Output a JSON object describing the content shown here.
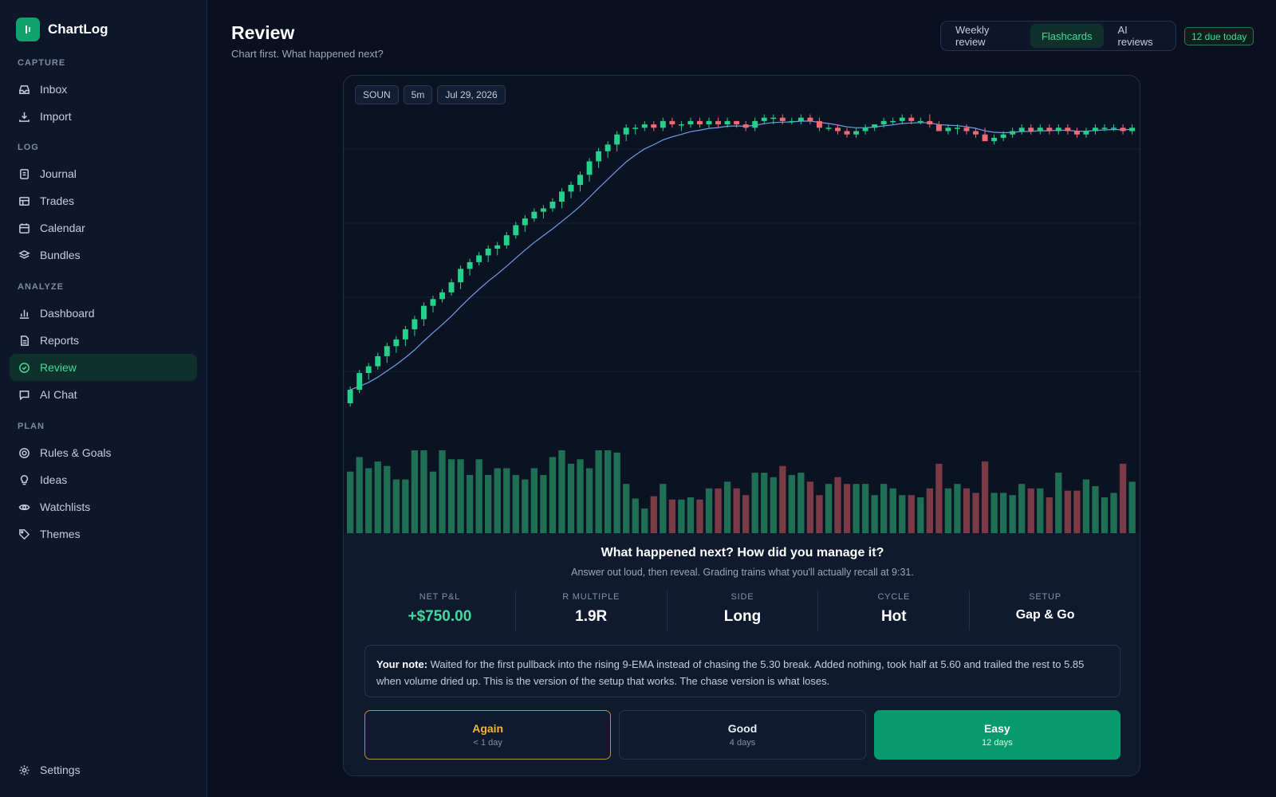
{
  "app": {
    "name": "ChartLog"
  },
  "sidebar": {
    "sections": [
      {
        "label": "CAPTURE",
        "items": [
          {
            "label": "Inbox",
            "icon": "inbox-icon"
          },
          {
            "label": "Import",
            "icon": "download-icon"
          }
        ]
      },
      {
        "label": "LOG",
        "items": [
          {
            "label": "Journal",
            "icon": "journal-icon"
          },
          {
            "label": "Trades",
            "icon": "table-icon"
          },
          {
            "label": "Calendar",
            "icon": "calendar-icon"
          },
          {
            "label": "Bundles",
            "icon": "layers-icon"
          }
        ]
      },
      {
        "label": "ANALYZE",
        "items": [
          {
            "label": "Dashboard",
            "icon": "bar-chart-icon"
          },
          {
            "label": "Reports",
            "icon": "document-icon"
          },
          {
            "label": "Review",
            "icon": "check-circle-icon",
            "active": true
          },
          {
            "label": "AI Chat",
            "icon": "chat-icon"
          }
        ]
      },
      {
        "label": "PLAN",
        "items": [
          {
            "label": "Rules & Goals",
            "icon": "target-icon"
          },
          {
            "label": "Ideas",
            "icon": "lightbulb-icon"
          },
          {
            "label": "Watchlists",
            "icon": "eye-icon"
          },
          {
            "label": "Themes",
            "icon": "tag-icon"
          }
        ]
      }
    ],
    "settings_label": "Settings"
  },
  "header": {
    "title": "Review",
    "subtitle": "Chart first. What happened next?",
    "tabs": [
      {
        "label": "Weekly review"
      },
      {
        "label": "Flashcards",
        "active": true
      },
      {
        "label": "AI reviews"
      }
    ],
    "due_badge": "12 due today"
  },
  "chart": {
    "chips": {
      "symbol": "SOUN",
      "timeframe": "5m",
      "date": "Jul 29, 2026"
    },
    "colors": {
      "up": "#26d08b",
      "down": "#f06a74",
      "ema": "#6e9fe6",
      "volume_up": "#1f6f55",
      "volume_down": "#7a3a46"
    }
  },
  "chart_data": {
    "type": "candlestick",
    "x": "5-minute bars",
    "ema_period": 9,
    "candles": [
      [
        5.0,
        5.05,
        4.99,
        5.04,
        0.55
      ],
      [
        5.04,
        5.1,
        5.03,
        5.09,
        0.68
      ],
      [
        5.09,
        5.12,
        5.07,
        5.11,
        0.58
      ],
      [
        5.11,
        5.15,
        5.1,
        5.14,
        0.64
      ],
      [
        5.14,
        5.18,
        5.12,
        5.17,
        0.6
      ],
      [
        5.17,
        5.2,
        5.15,
        5.19,
        0.48
      ],
      [
        5.19,
        5.23,
        5.17,
        5.22,
        0.48
      ],
      [
        5.22,
        5.26,
        5.2,
        5.25,
        0.74
      ],
      [
        5.25,
        5.3,
        5.23,
        5.29,
        0.74
      ],
      [
        5.29,
        5.32,
        5.27,
        5.31,
        0.55
      ],
      [
        5.31,
        5.34,
        5.3,
        5.33,
        0.74
      ],
      [
        5.33,
        5.37,
        5.32,
        5.36,
        0.66
      ],
      [
        5.36,
        5.41,
        5.34,
        5.4,
        0.66
      ],
      [
        5.4,
        5.43,
        5.38,
        5.42,
        0.52
      ],
      [
        5.42,
        5.45,
        5.41,
        5.44,
        0.66
      ],
      [
        5.44,
        5.47,
        5.42,
        5.46,
        0.52
      ],
      [
        5.46,
        5.48,
        5.44,
        5.47,
        0.58
      ],
      [
        5.47,
        5.51,
        5.46,
        5.5,
        0.58
      ],
      [
        5.5,
        5.54,
        5.49,
        5.53,
        0.52
      ],
      [
        5.53,
        5.56,
        5.51,
        5.55,
        0.48
      ],
      [
        5.55,
        5.58,
        5.54,
        5.57,
        0.58
      ],
      [
        5.57,
        5.59,
        5.55,
        5.58,
        0.52
      ],
      [
        5.58,
        5.61,
        5.57,
        5.6,
        0.68
      ],
      [
        5.6,
        5.64,
        5.58,
        5.63,
        0.74
      ],
      [
        5.63,
        5.66,
        5.61,
        5.65,
        0.62
      ],
      [
        5.65,
        5.69,
        5.63,
        5.68,
        0.66
      ],
      [
        5.68,
        5.73,
        5.66,
        5.72,
        0.58
      ],
      [
        5.72,
        5.76,
        5.7,
        5.75,
        0.74
      ],
      [
        5.75,
        5.78,
        5.73,
        5.77,
        0.74
      ],
      [
        5.77,
        5.81,
        5.75,
        5.8,
        0.72
      ],
      [
        5.8,
        5.83,
        5.78,
        5.82,
        0.44
      ],
      [
        5.82,
        5.83,
        5.8,
        5.82,
        0.31
      ],
      [
        5.82,
        5.84,
        5.81,
        5.83,
        0.22
      ],
      [
        5.83,
        5.84,
        5.81,
        5.82,
        0.33
      ],
      [
        5.82,
        5.85,
        5.81,
        5.84,
        0.44
      ],
      [
        5.84,
        5.85,
        5.82,
        5.83,
        0.3
      ],
      [
        5.83,
        5.84,
        5.81,
        5.83,
        0.3
      ],
      [
        5.83,
        5.85,
        5.82,
        5.84,
        0.32
      ],
      [
        5.84,
        5.85,
        5.82,
        5.83,
        0.3
      ],
      [
        5.83,
        5.85,
        5.82,
        5.84,
        0.4
      ],
      [
        5.84,
        5.85,
        5.82,
        5.83,
        0.4
      ],
      [
        5.83,
        5.85,
        5.82,
        5.84,
        0.46
      ],
      [
        5.84,
        5.84,
        5.82,
        5.83,
        0.4
      ],
      [
        5.83,
        5.84,
        5.81,
        5.82,
        0.34
      ],
      [
        5.82,
        5.85,
        5.81,
        5.84,
        0.54
      ],
      [
        5.84,
        5.86,
        5.83,
        5.85,
        0.54
      ],
      [
        5.85,
        5.86,
        5.83,
        5.85,
        0.5
      ],
      [
        5.85,
        5.86,
        5.83,
        5.84,
        0.6
      ],
      [
        5.84,
        5.85,
        5.83,
        5.84,
        0.52
      ],
      [
        5.84,
        5.86,
        5.83,
        5.85,
        0.54
      ],
      [
        5.85,
        5.86,
        5.83,
        5.84,
        0.46
      ],
      [
        5.84,
        5.85,
        5.81,
        5.82,
        0.34
      ],
      [
        5.82,
        5.83,
        5.81,
        5.82,
        0.44
      ],
      [
        5.82,
        5.83,
        5.8,
        5.81,
        0.5
      ],
      [
        5.81,
        5.82,
        5.79,
        5.8,
        0.44
      ],
      [
        5.8,
        5.82,
        5.79,
        5.81,
        0.44
      ],
      [
        5.81,
        5.83,
        5.8,
        5.82,
        0.44
      ],
      [
        5.82,
        5.83,
        5.81,
        5.83,
        0.34
      ],
      [
        5.83,
        5.85,
        5.82,
        5.84,
        0.44
      ],
      [
        5.84,
        5.85,
        5.83,
        5.84,
        0.4
      ],
      [
        5.84,
        5.86,
        5.83,
        5.85,
        0.34
      ],
      [
        5.85,
        5.86,
        5.83,
        5.84,
        0.34
      ],
      [
        5.84,
        5.85,
        5.83,
        5.84,
        0.32
      ],
      [
        5.84,
        5.86,
        5.82,
        5.83,
        0.4
      ],
      [
        5.83,
        5.84,
        5.81,
        5.81,
        0.62
      ],
      [
        5.81,
        5.83,
        5.8,
        5.82,
        0.4
      ],
      [
        5.82,
        5.83,
        5.8,
        5.82,
        0.44
      ],
      [
        5.82,
        5.83,
        5.8,
        5.81,
        0.4
      ],
      [
        5.81,
        5.82,
        5.79,
        5.8,
        0.36
      ],
      [
        5.8,
        5.82,
        5.78,
        5.78,
        0.64
      ],
      [
        5.78,
        5.8,
        5.77,
        5.79,
        0.36
      ],
      [
        5.79,
        5.81,
        5.78,
        5.8,
        0.36
      ],
      [
        5.8,
        5.82,
        5.79,
        5.81,
        0.34
      ],
      [
        5.81,
        5.83,
        5.8,
        5.82,
        0.44
      ],
      [
        5.82,
        5.83,
        5.8,
        5.81,
        0.4
      ],
      [
        5.81,
        5.83,
        5.8,
        5.82,
        0.4
      ],
      [
        5.82,
        5.83,
        5.8,
        5.81,
        0.32
      ],
      [
        5.81,
        5.83,
        5.8,
        5.82,
        0.54
      ],
      [
        5.82,
        5.83,
        5.8,
        5.81,
        0.38
      ],
      [
        5.81,
        5.82,
        5.79,
        5.8,
        0.38
      ],
      [
        5.8,
        5.82,
        5.79,
        5.81,
        0.48
      ],
      [
        5.81,
        5.83,
        5.8,
        5.82,
        0.42
      ],
      [
        5.82,
        5.83,
        5.81,
        5.82,
        0.32
      ],
      [
        5.82,
        5.83,
        5.81,
        5.82,
        0.36
      ],
      [
        5.82,
        5.83,
        5.8,
        5.81,
        0.62
      ],
      [
        5.81,
        5.83,
        5.8,
        5.82,
        0.46
      ]
    ],
    "candle_fields": [
      "open",
      "high",
      "low",
      "close",
      "volume_relative"
    ],
    "ylim": [
      4.95,
      5.88
    ]
  },
  "review": {
    "question": "What happened next? How did you manage it?",
    "hint": "Answer out loud, then reveal. Grading trains what you'll actually recall at 9:31.",
    "stats": [
      {
        "label": "NET P&L",
        "value": "+$750.00"
      },
      {
        "label": "R MULTIPLE",
        "value": "1.9R"
      },
      {
        "label": "SIDE",
        "value": "Long"
      },
      {
        "label": "CYCLE",
        "value": "Hot"
      },
      {
        "label": "SETUP",
        "value": "Gap & Go"
      }
    ],
    "note_label": "Your note:",
    "note_text": " Waited for the first pullback into the rising 9-EMA instead of chasing the 5.30 break. Added nothing, took half at 5.60 and trailed the rest to 5.85 when volume dried up. This is the version of the setup that works. The chase version is what loses.",
    "grades": [
      {
        "label": "Again",
        "sub": "< 1 day"
      },
      {
        "label": "Good",
        "sub": "4 days"
      },
      {
        "label": "Easy",
        "sub": "12 days"
      }
    ]
  }
}
